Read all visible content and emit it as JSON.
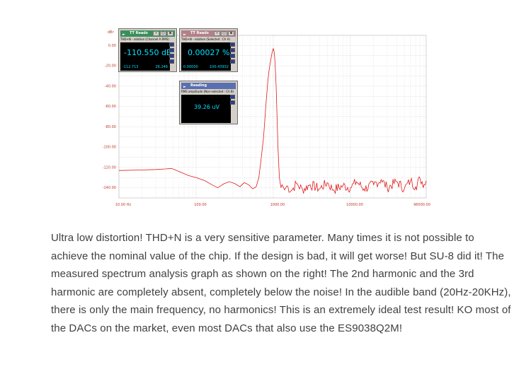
{
  "chart_data": {
    "type": "line",
    "title": "",
    "ylabel": "dBr",
    "xlabel": "",
    "x_scale": "log",
    "xlim": [
      10,
      96000
    ],
    "ylim": [
      -150,
      10
    ],
    "grid": true,
    "y_ticks": [
      "0.00",
      "-20.00",
      "-40.00",
      "-60.00",
      "-80.00",
      "-100.00",
      "-120.00",
      "-140.00"
    ],
    "y_tick_values": [
      0,
      -20,
      -40,
      -60,
      -80,
      -100,
      -120,
      -140
    ],
    "x_ticks": [
      "10.00 Hz",
      "100.00",
      "1000.00",
      "10000.00",
      "96000.00"
    ],
    "x_tick_values": [
      10,
      100,
      1000,
      10000,
      96000
    ],
    "series": [
      {
        "color": "#e01a1a",
        "x": [
          10,
          20,
          30,
          40,
          48,
          60,
          80,
          100,
          130,
          160,
          190,
          230,
          270,
          320,
          370,
          420,
          480,
          540,
          600,
          650,
          700,
          750,
          800,
          850,
          880,
          910,
          940,
          960,
          980,
          1000,
          1020,
          1040,
          1060,
          1090,
          1120,
          1150,
          1200,
          1260,
          1300,
          1400,
          1500,
          1700,
          2000,
          2400,
          3000,
          4000,
          5000,
          6000,
          8000,
          10000,
          12000,
          15000,
          20000,
          25000,
          30000,
          40000,
          50000,
          60000,
          70000,
          80000,
          90000,
          96000
        ],
        "y": [
          -123,
          -122.5,
          -122,
          -121.5,
          -121,
          -124,
          -128,
          -130,
          -133,
          -137,
          -140,
          -136,
          -134,
          -136,
          -139,
          -135,
          -137,
          -141,
          -139,
          -130,
          -110,
          -90,
          -60,
          -35,
          -25,
          -18,
          -12,
          -8,
          -5,
          -3,
          -5,
          -10,
          -20,
          -40,
          -70,
          -100,
          -130,
          -140,
          -137,
          -142,
          -138,
          -143,
          -136,
          -142,
          -137,
          -141,
          -135,
          -142,
          -138,
          -140,
          -134,
          -141,
          -137,
          -132,
          -140,
          -134,
          -141,
          -133,
          -139,
          -131,
          -137,
          -133
        ]
      }
    ]
  },
  "panels": [
    {
      "title": "TT Reads",
      "subtitle": "THD+N - relative (Channel A RMS)",
      "value": "-110.550 dB",
      "left_value": "-112.713",
      "right_value": "26.246",
      "title_color": "#3a8f5a"
    },
    {
      "title": "TT Reads",
      "subtitle": "THD+N - relative (Selected : Ch A)",
      "value": "0.00027 %",
      "left_value": "0.00000",
      "right_value": "100.43932",
      "title_color": "#b3808a"
    },
    {
      "title": "Reading",
      "subtitle": "RMS amplitude (Non-selected : Ch B)",
      "value": "39.26 uV",
      "title_color": "#5a6fb0"
    }
  ],
  "description": "Ultra low distortion! THD+N is a very sensitive parameter. Many times it is not possible to achieve the nominal value of the chip. If the design is bad, it will get worse! But SU-8 did it! The measured spectrum analysis graph as shown on the right! The 2nd harmonic and the 3rd harmonic are completely absent, completely below the noise! In the audible band (20Hz-20KHz), there is only the main frequency, no harmonics! This is an extremely ideal test result! KO most of the DACs on the market, even most DACs that also use the ES9038Q2M!"
}
